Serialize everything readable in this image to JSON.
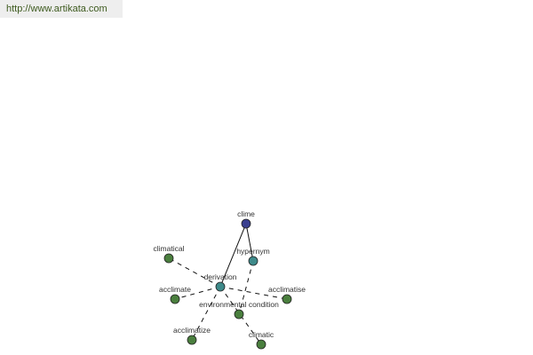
{
  "banner": {
    "url": "http://www.artikata.com"
  },
  "colors": {
    "root": "#3a3f8f",
    "relation": "#3e8a8a",
    "word": "#4a7f3e"
  },
  "graph": {
    "nodes": [
      {
        "id": "clime",
        "label": "clime",
        "kind": "root"
      },
      {
        "id": "hypernym",
        "label": "hypernym",
        "kind": "relation"
      },
      {
        "id": "derivation",
        "label": "derivation",
        "kind": "relation"
      },
      {
        "id": "env",
        "label": "environmental condition",
        "kind": "word"
      },
      {
        "id": "climatical",
        "label": "climatical",
        "kind": "word"
      },
      {
        "id": "acclimate",
        "label": "acclimate",
        "kind": "word"
      },
      {
        "id": "acclimatise",
        "label": "acclimatise",
        "kind": "word"
      },
      {
        "id": "acclimatize",
        "label": "acclimatize",
        "kind": "word"
      },
      {
        "id": "climatic",
        "label": "climatic",
        "kind": "word"
      }
    ],
    "edges": [
      {
        "from": "clime",
        "to": "hypernym",
        "style": "solid"
      },
      {
        "from": "clime",
        "to": "derivation",
        "style": "solid"
      },
      {
        "from": "hypernym",
        "to": "env",
        "style": "dashed"
      },
      {
        "from": "derivation",
        "to": "climatical",
        "style": "dashed"
      },
      {
        "from": "derivation",
        "to": "acclimate",
        "style": "dashed"
      },
      {
        "from": "derivation",
        "to": "acclimatise",
        "style": "dashed"
      },
      {
        "from": "derivation",
        "to": "acclimatize",
        "style": "dashed"
      },
      {
        "from": "derivation",
        "to": "climatic",
        "style": "dashed"
      }
    ]
  }
}
